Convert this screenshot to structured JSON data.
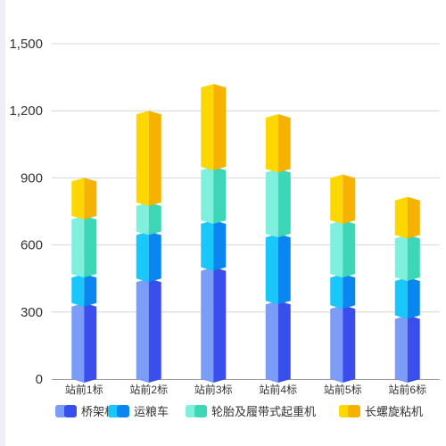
{
  "chart_data": {
    "type": "bar",
    "stacked": true,
    "style": "3d-cylinder",
    "categories": [
      "站前1标",
      "站前2标",
      "站前3标",
      "站前4标",
      "站前5标",
      "站前6标"
    ],
    "series": [
      {
        "name": "桥架机",
        "values": [
          340,
          450,
          500,
          350,
          330,
          285
        ],
        "color_left": "#7b9cf7",
        "color_right": "#3a4ded"
      },
      {
        "name": "运粮车",
        "values": [
          130,
          210,
          210,
          300,
          140,
          170
        ],
        "color_left": "#19c7fb",
        "color_right": "#0a86f0"
      },
      {
        "name": "轮胎及履带式起重机",
        "values": [
          260,
          130,
          240,
          290,
          240,
          190
        ],
        "color_left": "#7ef0dc",
        "color_right": "#3dd6b6"
      },
      {
        "name": "长螺旋粘机",
        "values": [
          170,
          410,
          370,
          245,
          205,
          170
        ],
        "color_left": "#fed700",
        "color_right": "#f6b200"
      }
    ],
    "ylim": [
      0,
      1500
    ],
    "yticks": [
      0,
      300,
      600,
      900,
      1200,
      1500
    ],
    "ytick_labels": [
      "0",
      "300",
      "600",
      "900",
      "1,200",
      "1,500"
    ],
    "grid": true,
    "legend_position": "bottom",
    "title": "",
    "xlabel": "",
    "ylabel": ""
  }
}
